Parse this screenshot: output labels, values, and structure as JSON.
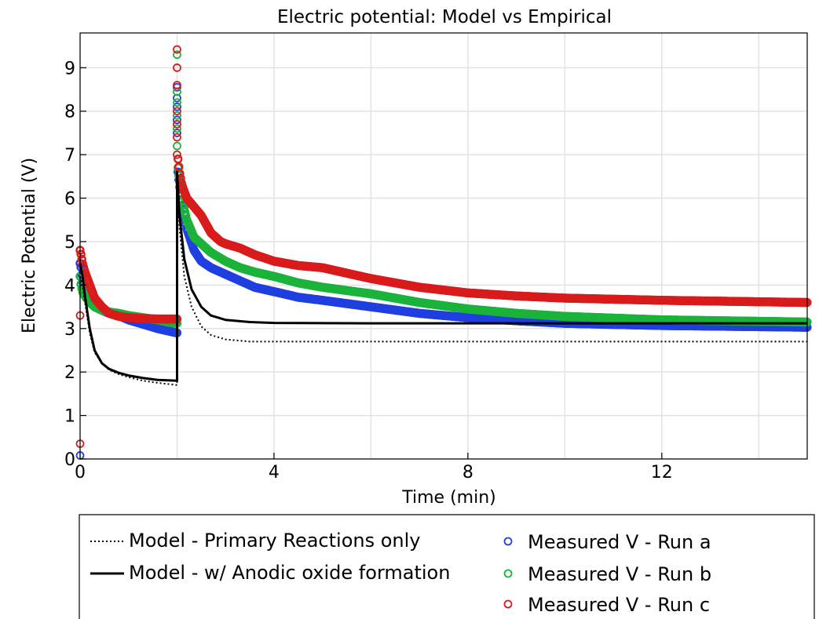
{
  "chart_data": {
    "type": "line",
    "title": "Electric potential: Model vs Empirical",
    "xlabel": "Time (min)",
    "ylabel": "Electric Potential (V)",
    "xlim": [
      0,
      15
    ],
    "ylim": [
      0,
      9.8
    ],
    "xticks": [
      0,
      4,
      8,
      12
    ],
    "xtick_labels": [
      "0",
      "4",
      "8",
      "12"
    ],
    "xgrid": [
      0,
      2,
      4,
      6,
      8,
      10,
      12,
      14
    ],
    "yticks": [
      0,
      1,
      2,
      3,
      4,
      5,
      6,
      7,
      8,
      9
    ],
    "ytick_labels": [
      "0",
      "1",
      "2",
      "3",
      "4",
      "5",
      "6",
      "7",
      "8",
      "9"
    ],
    "grid": true,
    "legend_position": "below",
    "series": [
      {
        "name": "Model - Primary Reactions only",
        "kind": "line",
        "style": "dotted",
        "color": "#000000",
        "x": [
          0,
          0.05,
          0.1,
          0.2,
          0.3,
          0.45,
          0.6,
          0.8,
          1.0,
          1.3,
          1.6,
          2.0,
          2.0,
          2.05,
          2.15,
          2.3,
          2.5,
          2.7,
          3.0,
          3.5,
          4,
          6,
          8,
          10,
          12,
          15
        ],
        "y": [
          4.2,
          4.0,
          3.6,
          2.9,
          2.45,
          2.2,
          2.05,
          1.95,
          1.88,
          1.8,
          1.75,
          1.7,
          6.6,
          5.3,
          4.2,
          3.5,
          3.05,
          2.85,
          2.75,
          2.7,
          2.7,
          2.7,
          2.7,
          2.7,
          2.7,
          2.7
        ]
      },
      {
        "name": "Model - w/ Anodic oxide formation",
        "kind": "line",
        "style": "solid",
        "color": "#000000",
        "x": [
          0,
          0.05,
          0.1,
          0.2,
          0.3,
          0.45,
          0.6,
          0.8,
          1.0,
          1.3,
          1.6,
          2.0,
          2.0,
          2.05,
          2.15,
          2.3,
          2.5,
          2.7,
          3.0,
          3.5,
          4,
          6,
          8,
          10,
          12,
          15
        ],
        "y": [
          4.5,
          4.2,
          3.75,
          3.0,
          2.5,
          2.2,
          2.07,
          1.98,
          1.92,
          1.86,
          1.82,
          1.8,
          6.6,
          5.6,
          4.6,
          3.9,
          3.5,
          3.3,
          3.2,
          3.15,
          3.13,
          3.12,
          3.12,
          3.12,
          3.12,
          3.12
        ]
      },
      {
        "name": "Measured V - Run a",
        "kind": "scatter",
        "marker": "open-circle",
        "color": "#1f3fe0",
        "spike": [
          7.5,
          7.8,
          8.1,
          8.3,
          8.55
        ],
        "x": [
          0,
          0,
          0.02,
          0.05,
          0.1,
          0.2,
          0.3,
          0.45,
          0.6,
          0.8,
          1.0,
          1.3,
          1.6,
          1.8,
          2.0,
          2.02,
          2.05,
          2.1,
          2.2,
          2.35,
          2.5,
          2.7,
          3.0,
          3.3,
          3.6,
          4.0,
          4.5,
          5,
          6,
          7,
          8,
          9,
          10,
          12,
          15
        ],
        "y": [
          0.08,
          4.5,
          4.4,
          4.1,
          3.9,
          3.65,
          3.5,
          3.42,
          3.35,
          3.3,
          3.2,
          3.1,
          3.0,
          2.95,
          2.9,
          6.6,
          6.3,
          5.9,
          5.3,
          4.8,
          4.55,
          4.4,
          4.25,
          4.1,
          3.95,
          3.85,
          3.72,
          3.65,
          3.5,
          3.35,
          3.25,
          3.18,
          3.12,
          3.07,
          3.03
        ]
      },
      {
        "name": "Measured V - Run b",
        "kind": "scatter",
        "marker": "open-circle",
        "color": "#1bb33a",
        "spike": [
          7.2,
          7.6,
          7.9,
          8.2,
          8.45,
          9.3
        ],
        "x": [
          0,
          0.02,
          0.05,
          0.1,
          0.2,
          0.3,
          0.45,
          0.6,
          0.8,
          1.0,
          1.3,
          1.6,
          1.8,
          2.0,
          2.02,
          2.05,
          2.1,
          2.2,
          2.35,
          2.5,
          2.7,
          3.0,
          3.3,
          3.6,
          4.0,
          4.5,
          5,
          6,
          7,
          8,
          9,
          10,
          12,
          15
        ],
        "y": [
          4.2,
          4.0,
          3.85,
          3.75,
          3.6,
          3.5,
          3.42,
          3.38,
          3.35,
          3.3,
          3.25,
          3.2,
          3.15,
          3.12,
          6.7,
          6.4,
          6.0,
          5.5,
          5.1,
          4.95,
          4.75,
          4.55,
          4.4,
          4.3,
          4.2,
          4.05,
          3.95,
          3.8,
          3.6,
          3.45,
          3.35,
          3.28,
          3.2,
          3.15
        ]
      },
      {
        "name": "Measured V - Run c",
        "kind": "scatter",
        "marker": "open-circle",
        "color": "#d81b1b",
        "spike": [
          7.0,
          7.4,
          7.7,
          8.0,
          8.6,
          9.0,
          9.42
        ],
        "x": [
          0,
          0,
          0,
          0.02,
          0.05,
          0.1,
          0.2,
          0.3,
          0.45,
          0.6,
          0.8,
          1.0,
          1.3,
          1.6,
          1.8,
          2.0,
          2.02,
          2.05,
          2.1,
          2.2,
          2.35,
          2.5,
          2.7,
          2.9,
          3.0,
          3.3,
          3.6,
          4.0,
          4.5,
          5,
          6,
          7,
          8,
          9,
          10,
          12,
          15
        ],
        "y": [
          0.35,
          3.3,
          4.8,
          4.7,
          4.5,
          4.3,
          4.0,
          3.7,
          3.5,
          3.35,
          3.28,
          3.25,
          3.23,
          3.22,
          3.22,
          3.22,
          6.9,
          6.6,
          6.3,
          6.0,
          5.8,
          5.6,
          5.2,
          5.0,
          4.95,
          4.85,
          4.7,
          4.55,
          4.45,
          4.4,
          4.15,
          3.95,
          3.82,
          3.75,
          3.7,
          3.65,
          3.6
        ]
      }
    ]
  },
  "legend": {
    "items": [
      {
        "label": "Model - Primary Reactions only"
      },
      {
        "label": "Model - w/ Anodic oxide formation"
      },
      {
        "label": "Measured V - Run a"
      },
      {
        "label": "Measured V - Run b"
      },
      {
        "label": "Measured V - Run c"
      }
    ]
  }
}
